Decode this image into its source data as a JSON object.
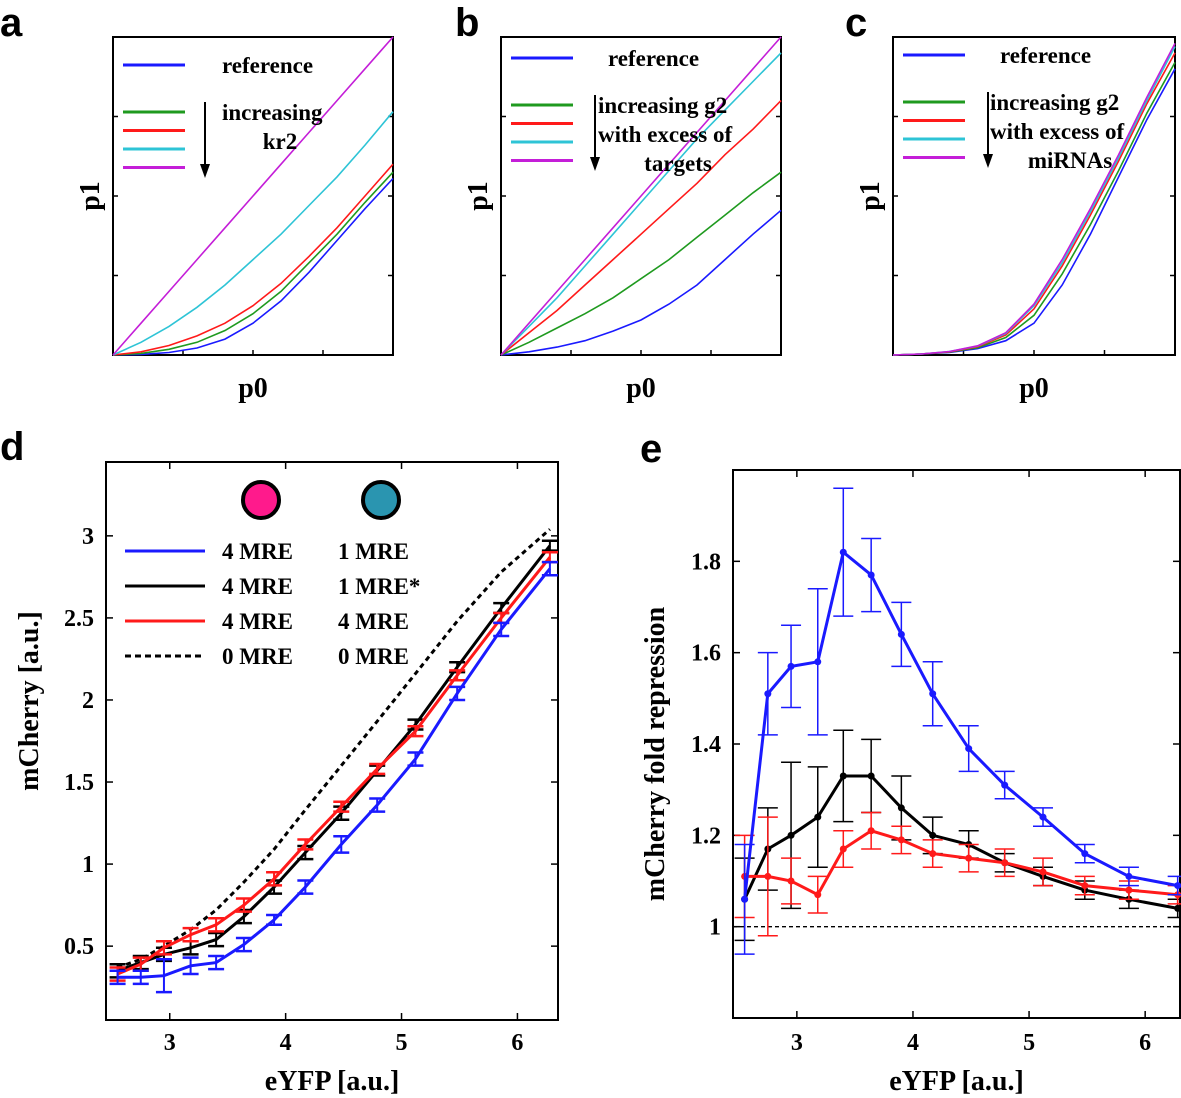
{
  "chart_data": [
    {
      "panel": "a",
      "type": "line",
      "xlabel": "p0",
      "ylabel": "p1",
      "xlim": [
        0,
        1
      ],
      "ylim": [
        0,
        1
      ],
      "legend": {
        "reference_label": "reference",
        "arrow_label_lines": [
          "increasing",
          "kr2"
        ],
        "colors": [
          "#1a1aff",
          "#1f9a1f",
          "#ff1a1a",
          "#2ec4d6",
          "#c41ed8"
        ]
      },
      "series": [
        {
          "name": "reference",
          "color": "#1a1aff",
          "x": [
            0,
            0.1,
            0.2,
            0.3,
            0.4,
            0.5,
            0.6,
            0.7,
            0.8,
            0.9,
            1.0
          ],
          "y": [
            0,
            0.002,
            0.008,
            0.022,
            0.05,
            0.1,
            0.17,
            0.26,
            0.36,
            0.46,
            0.555
          ]
        },
        {
          "name": "kr2 level 1",
          "color": "#1f9a1f",
          "x": [
            0,
            0.1,
            0.2,
            0.3,
            0.4,
            0.5,
            0.6,
            0.7,
            0.8,
            0.9,
            1.0
          ],
          "y": [
            0,
            0.005,
            0.018,
            0.04,
            0.077,
            0.13,
            0.2,
            0.29,
            0.38,
            0.48,
            0.575
          ]
        },
        {
          "name": "kr2 level 2",
          "color": "#ff1a1a",
          "x": [
            0,
            0.1,
            0.2,
            0.3,
            0.4,
            0.5,
            0.6,
            0.7,
            0.8,
            0.9,
            1.0
          ],
          "y": [
            0,
            0.01,
            0.03,
            0.06,
            0.1,
            0.155,
            0.225,
            0.31,
            0.4,
            0.5,
            0.6
          ]
        },
        {
          "name": "kr2 level 3",
          "color": "#2ec4d6",
          "x": [
            0,
            0.1,
            0.2,
            0.3,
            0.4,
            0.5,
            0.6,
            0.7,
            0.8,
            0.9,
            1.0
          ],
          "y": [
            0,
            0.04,
            0.09,
            0.15,
            0.22,
            0.3,
            0.38,
            0.47,
            0.56,
            0.66,
            0.765
          ]
        },
        {
          "name": "kr2 level 4",
          "color": "#c41ed8",
          "x": [
            0,
            0.1,
            0.2,
            0.3,
            0.4,
            0.5,
            0.6,
            0.7,
            0.8,
            0.9,
            1.0
          ],
          "y": [
            0,
            0.1,
            0.2,
            0.3,
            0.4,
            0.5,
            0.6,
            0.7,
            0.8,
            0.9,
            1.0
          ]
        }
      ]
    },
    {
      "panel": "b",
      "type": "line",
      "xlabel": "p0",
      "ylabel": "p1",
      "xlim": [
        0,
        1
      ],
      "ylim": [
        0,
        1
      ],
      "legend": {
        "reference_label": "reference",
        "arrow_label_lines": [
          "increasing g2",
          "with excess of",
          "targets"
        ],
        "colors": [
          "#1a1aff",
          "#1f9a1f",
          "#ff1a1a",
          "#2ec4d6",
          "#c41ed8"
        ]
      },
      "series": [
        {
          "name": "reference",
          "color": "#1a1aff",
          "x": [
            0,
            0.1,
            0.2,
            0.3,
            0.4,
            0.5,
            0.6,
            0.7,
            0.8,
            0.9,
            1.0
          ],
          "y": [
            0,
            0.01,
            0.025,
            0.045,
            0.075,
            0.11,
            0.16,
            0.22,
            0.3,
            0.38,
            0.455
          ]
        },
        {
          "name": "g2 level 1",
          "color": "#1f9a1f",
          "x": [
            0,
            0.1,
            0.2,
            0.3,
            0.4,
            0.5,
            0.6,
            0.7,
            0.8,
            0.9,
            1.0
          ],
          "y": [
            0,
            0.04,
            0.085,
            0.13,
            0.18,
            0.24,
            0.3,
            0.37,
            0.44,
            0.51,
            0.575
          ]
        },
        {
          "name": "g2 level 2",
          "color": "#ff1a1a",
          "x": [
            0,
            0.1,
            0.2,
            0.3,
            0.4,
            0.5,
            0.6,
            0.7,
            0.8,
            0.9,
            1.0
          ],
          "y": [
            0,
            0.07,
            0.14,
            0.22,
            0.3,
            0.38,
            0.46,
            0.54,
            0.63,
            0.71,
            0.8
          ]
        },
        {
          "name": "g2 level 3",
          "color": "#2ec4d6",
          "x": [
            0,
            0.1,
            0.2,
            0.3,
            0.4,
            0.5,
            0.6,
            0.7,
            0.8,
            0.9,
            1.0
          ],
          "y": [
            0,
            0.09,
            0.18,
            0.28,
            0.38,
            0.48,
            0.58,
            0.68,
            0.77,
            0.86,
            0.95
          ]
        },
        {
          "name": "g2 level 4",
          "color": "#c41ed8",
          "x": [
            0,
            0.1,
            0.2,
            0.3,
            0.4,
            0.5,
            0.6,
            0.7,
            0.8,
            0.9,
            1.0
          ],
          "y": [
            0,
            0.1,
            0.2,
            0.3,
            0.4,
            0.5,
            0.6,
            0.7,
            0.8,
            0.9,
            1.0
          ]
        }
      ]
    },
    {
      "panel": "c",
      "type": "line",
      "xlabel": "p0",
      "ylabel": "p1",
      "xlim": [
        0,
        1
      ],
      "ylim": [
        0,
        1
      ],
      "legend": {
        "reference_label": "reference",
        "arrow_label_lines": [
          "increasing g2",
          "with excess of",
          "miRNAs"
        ],
        "colors": [
          "#1a1aff",
          "#1f9a1f",
          "#ff1a1a",
          "#2ec4d6",
          "#c41ed8"
        ]
      },
      "series": [
        {
          "name": "reference",
          "color": "#1a1aff",
          "x": [
            0,
            0.1,
            0.2,
            0.3,
            0.4,
            0.5,
            0.6,
            0.7,
            0.8,
            0.9,
            1.0
          ],
          "y": [
            0,
            0.003,
            0.008,
            0.02,
            0.045,
            0.1,
            0.22,
            0.38,
            0.56,
            0.74,
            0.9
          ]
        },
        {
          "name": "g2 level 1",
          "color": "#1f9a1f",
          "x": [
            0,
            0.1,
            0.2,
            0.3,
            0.4,
            0.5,
            0.6,
            0.7,
            0.8,
            0.9,
            1.0
          ],
          "y": [
            0,
            0.003,
            0.009,
            0.023,
            0.055,
            0.125,
            0.255,
            0.41,
            0.58,
            0.76,
            0.92
          ]
        },
        {
          "name": "g2 level 2",
          "color": "#ff1a1a",
          "x": [
            0,
            0.1,
            0.2,
            0.3,
            0.4,
            0.5,
            0.6,
            0.7,
            0.8,
            0.9,
            1.0
          ],
          "y": [
            0,
            0.003,
            0.01,
            0.026,
            0.063,
            0.145,
            0.28,
            0.44,
            0.61,
            0.79,
            0.95
          ]
        },
        {
          "name": "g2 level 3",
          "color": "#2ec4d6",
          "x": [
            0,
            0.1,
            0.2,
            0.3,
            0.4,
            0.5,
            0.6,
            0.7,
            0.8,
            0.9,
            1.0
          ],
          "y": [
            0,
            0.003,
            0.011,
            0.028,
            0.068,
            0.155,
            0.29,
            0.45,
            0.62,
            0.8,
            0.97
          ]
        },
        {
          "name": "g2 level 4",
          "color": "#c41ed8",
          "x": [
            0,
            0.1,
            0.2,
            0.3,
            0.4,
            0.5,
            0.6,
            0.7,
            0.8,
            0.9,
            1.0
          ],
          "y": [
            0,
            0.003,
            0.011,
            0.029,
            0.07,
            0.16,
            0.3,
            0.46,
            0.63,
            0.81,
            0.98
          ]
        }
      ]
    },
    {
      "panel": "d",
      "type": "line",
      "xlabel": "eYFP  [a.u.]",
      "ylabel": "mCherry  [a.u.]",
      "xlim": [
        2.45,
        6.35
      ],
      "ylim": [
        0.05,
        3.45
      ],
      "xticks": [
        3,
        4,
        5,
        6
      ],
      "xtick_labels": [
        "3",
        "4",
        "5",
        "6"
      ],
      "yticks": [
        0.5,
        1,
        1.5,
        2,
        2.5,
        3
      ],
      "ytick_labels": [
        "0.5",
        "1",
        "1.5",
        "2",
        "2.5",
        "3"
      ],
      "legend": {
        "circle_colors": [
          "#ff1a8c",
          "#2a95b0"
        ],
        "rows": [
          {
            "color": "#1a1aff",
            "dashed": false,
            "col1": "4 MRE",
            "col2": "1 MRE"
          },
          {
            "color": "#000000",
            "dashed": false,
            "col1": "4 MRE",
            "col2": "1 MRE*"
          },
          {
            "color": "#ff1a1a",
            "dashed": false,
            "col1": "4 MRE",
            "col2": "4 MRE"
          },
          {
            "color": "#000000",
            "dashed": true,
            "col1": "0 MRE",
            "col2": "0 MRE"
          }
        ]
      },
      "x": [
        2.55,
        2.75,
        2.95,
        3.18,
        3.4,
        3.64,
        3.9,
        4.17,
        4.48,
        4.79,
        5.12,
        5.48,
        5.86,
        6.28
      ],
      "series": [
        {
          "name": "4 MRE / 1 MRE",
          "color": "#1a1aff",
          "dashed": false,
          "y": [
            0.31,
            0.31,
            0.32,
            0.38,
            0.4,
            0.51,
            0.66,
            0.86,
            1.12,
            1.36,
            1.64,
            2.04,
            2.43,
            2.8
          ],
          "err": [
            0.04,
            0.04,
            0.1,
            0.05,
            0.04,
            0.04,
            0.03,
            0.04,
            0.05,
            0.04,
            0.04,
            0.04,
            0.04,
            0.04
          ]
        },
        {
          "name": "4 MRE / 1 MRE*",
          "color": "#000000",
          "dashed": false,
          "y": [
            0.35,
            0.4,
            0.45,
            0.49,
            0.54,
            0.68,
            0.86,
            1.07,
            1.31,
            1.57,
            1.85,
            2.2,
            2.56,
            2.94
          ],
          "err": [
            0.04,
            0.04,
            0.04,
            0.04,
            0.04,
            0.04,
            0.04,
            0.04,
            0.04,
            0.03,
            0.03,
            0.03,
            0.03,
            0.03
          ]
        },
        {
          "name": "4 MRE / 4 MRE",
          "color": "#ff1a1a",
          "dashed": false,
          "y": [
            0.33,
            0.39,
            0.49,
            0.57,
            0.63,
            0.75,
            0.91,
            1.12,
            1.35,
            1.58,
            1.81,
            2.15,
            2.5,
            2.87
          ],
          "err": [
            0.04,
            0.04,
            0.04,
            0.04,
            0.04,
            0.04,
            0.04,
            0.03,
            0.03,
            0.03,
            0.03,
            0.03,
            0.03,
            0.03
          ]
        },
        {
          "name": "0 MRE / 0 MRE",
          "color": "#000000",
          "dashed": true,
          "y": [
            0.37,
            0.42,
            0.5,
            0.6,
            0.72,
            0.89,
            1.09,
            1.33,
            1.6,
            1.87,
            2.16,
            2.48,
            2.78,
            3.04
          ],
          "err": []
        }
      ]
    },
    {
      "panel": "e",
      "type": "line",
      "xlabel": "eYFP  [a.u.]",
      "ylabel": "mCherry fold repression",
      "xlim": [
        2.45,
        6.3
      ],
      "ylim": [
        0.8,
        2.0
      ],
      "xticks": [
        3,
        4,
        5,
        6
      ],
      "xtick_labels": [
        "3",
        "4",
        "5",
        "6"
      ],
      "yticks": [
        1,
        1.2,
        1.4,
        1.6,
        1.8
      ],
      "ytick_labels": [
        "1",
        "1.2",
        "1.4",
        "1.6",
        "1.8"
      ],
      "reference_line": 1.0,
      "x": [
        2.55,
        2.75,
        2.95,
        3.18,
        3.4,
        3.64,
        3.9,
        4.17,
        4.48,
        4.79,
        5.12,
        5.48,
        5.86,
        6.28
      ],
      "series": [
        {
          "name": "4 MRE / 1 MRE",
          "color": "#1a1aff",
          "y": [
            1.06,
            1.51,
            1.57,
            1.58,
            1.82,
            1.77,
            1.64,
            1.51,
            1.39,
            1.31,
            1.24,
            1.16,
            1.11,
            1.09
          ],
          "err": [
            0.12,
            0.09,
            0.09,
            0.16,
            0.14,
            0.08,
            0.07,
            0.07,
            0.05,
            0.03,
            0.02,
            0.02,
            0.02,
            0.02
          ]
        },
        {
          "name": "4 MRE / 1 MRE*",
          "color": "#000000",
          "y": [
            1.06,
            1.17,
            1.2,
            1.24,
            1.33,
            1.33,
            1.26,
            1.2,
            1.18,
            1.14,
            1.11,
            1.08,
            1.06,
            1.04
          ],
          "err": [
            0.09,
            0.09,
            0.16,
            0.11,
            0.1,
            0.08,
            0.07,
            0.04,
            0.03,
            0.02,
            0.02,
            0.02,
            0.02,
            0.02
          ]
        },
        {
          "name": "4 MRE / 4 MRE",
          "color": "#ff1a1a",
          "y": [
            1.11,
            1.11,
            1.1,
            1.07,
            1.17,
            1.21,
            1.19,
            1.16,
            1.15,
            1.14,
            1.12,
            1.09,
            1.08,
            1.07
          ],
          "err": [
            0.09,
            0.13,
            0.05,
            0.04,
            0.04,
            0.04,
            0.03,
            0.03,
            0.03,
            0.03,
            0.03,
            0.02,
            0.02,
            0.02
          ]
        }
      ]
    }
  ]
}
